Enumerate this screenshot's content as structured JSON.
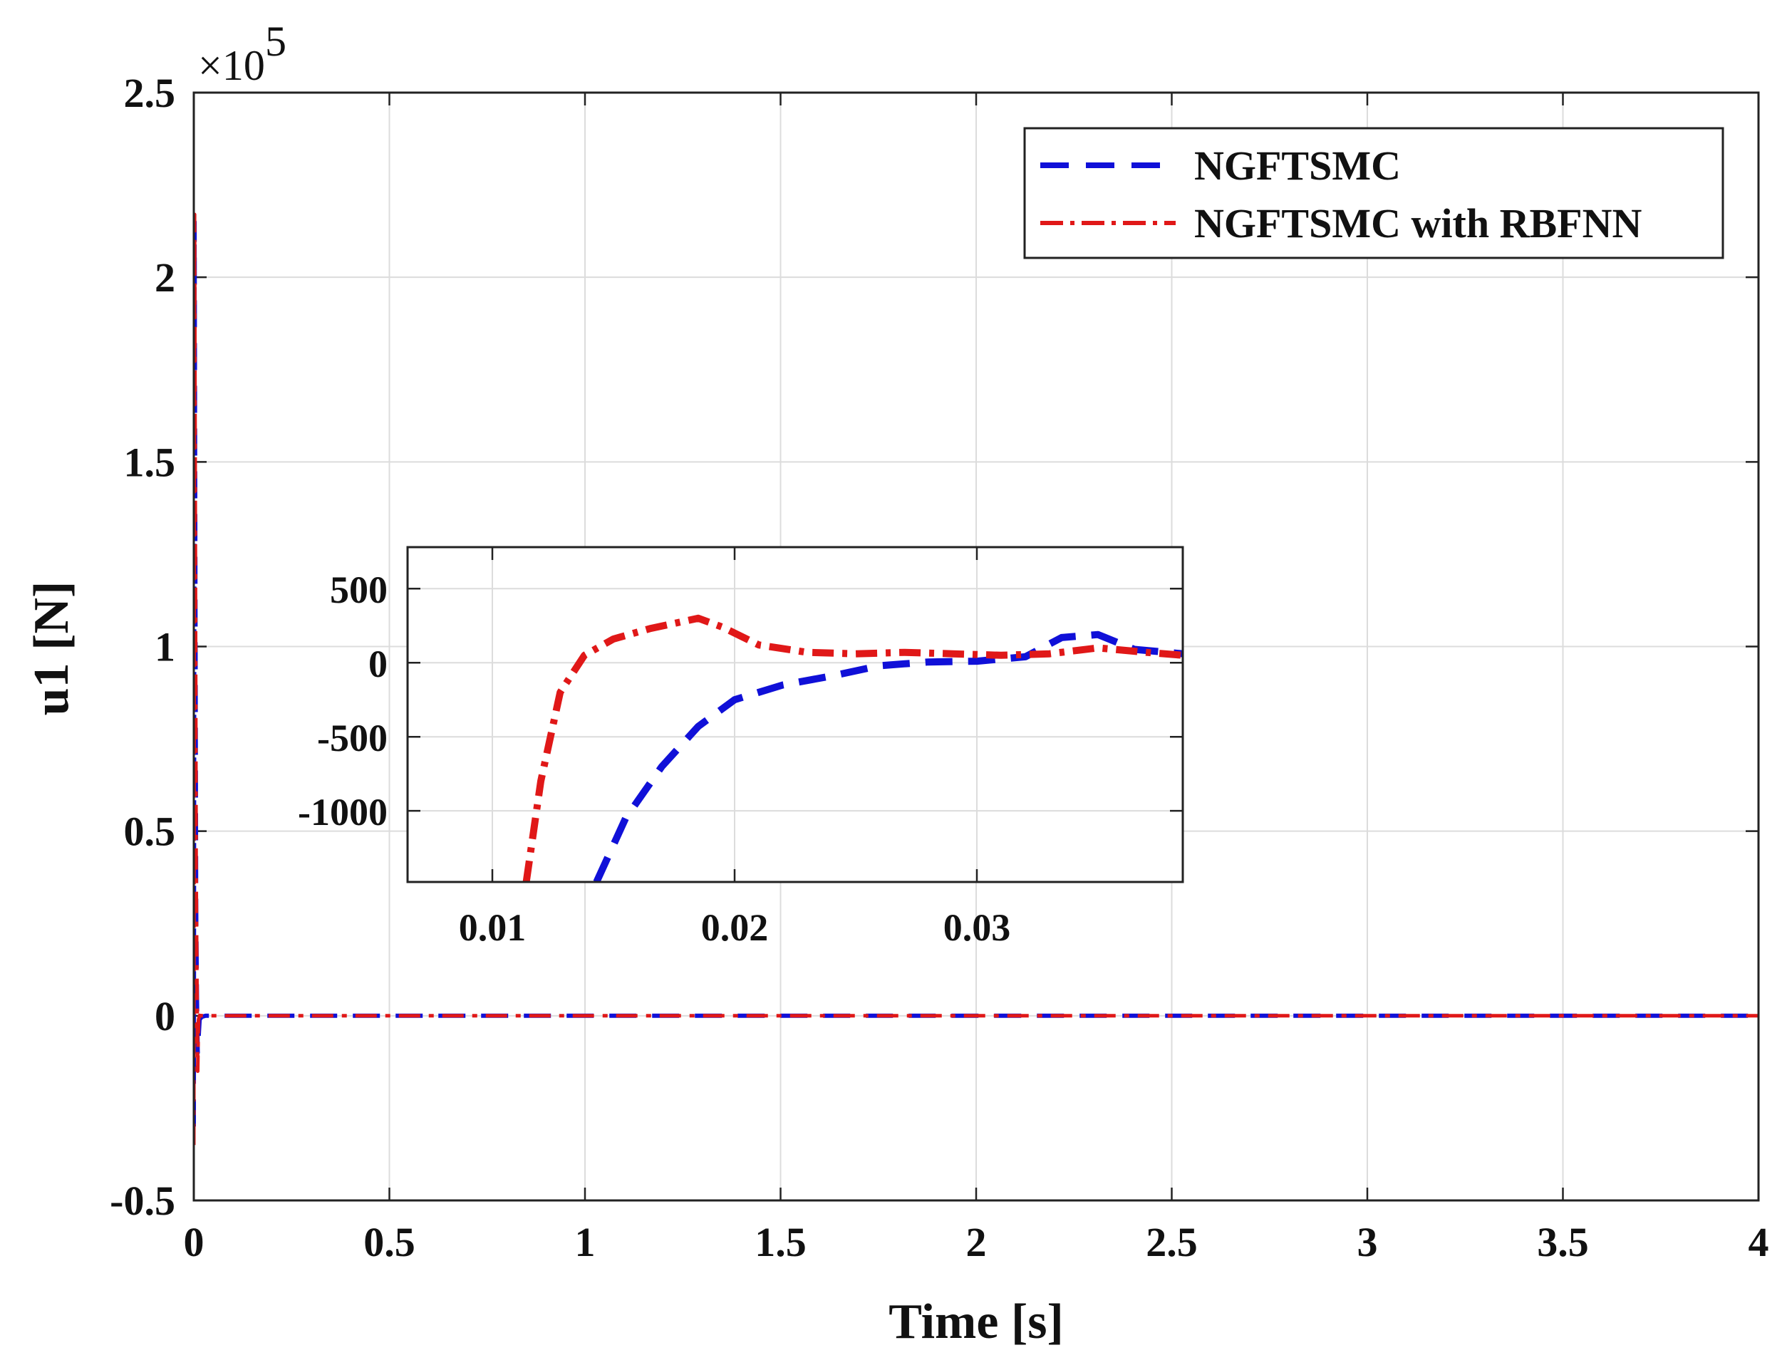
{
  "chart_data": [
    {
      "type": "line",
      "xlabel": "Time [s]",
      "ylabel": "u1 [N]",
      "xlim": [
        0,
        4
      ],
      "ylim": [
        -0.5,
        2.5
      ],
      "xticks": [
        0,
        0.5,
        1,
        1.5,
        2,
        2.5,
        3,
        3.5,
        4
      ],
      "xtick_labels": [
        "0",
        "0.5",
        "1",
        "1.5",
        "2",
        "2.5",
        "3",
        "3.5",
        "4"
      ],
      "yticks": [
        -0.5,
        0,
        0.5,
        1,
        1.5,
        2,
        2.5
      ],
      "ytick_labels": [
        "-0.5",
        "0",
        "0.5",
        "1",
        "1.5",
        "2",
        "2.5"
      ],
      "y_exponent_base": "×10",
      "y_exponent_power": "5",
      "grid": true,
      "legend_position": "top-right",
      "series": [
        {
          "name": "NGFTSMC",
          "color": "#1010d8",
          "style": "dashed",
          "x": [
            0,
            0.002,
            0.004,
            0.006,
            0.008,
            0.01,
            0.015,
            0.02,
            0.03,
            0.1,
            4
          ],
          "y": [
            -0.3,
            2.15,
            1.2,
            0.3,
            0.05,
            -0.1,
            -0.01,
            -0.003,
            0,
            0,
            0
          ]
        },
        {
          "name": "NGFTSMC with RBFNN",
          "color": "#e01818",
          "style": "dashdot",
          "x": [
            0,
            0.002,
            0.004,
            0.006,
            0.008,
            0.01,
            0.012,
            0.015,
            0.02,
            0.03,
            0.1,
            4
          ],
          "y": [
            -0.35,
            2.17,
            1.3,
            0.4,
            0.1,
            -0.15,
            -0.01,
            0.001,
            0.0005,
            0,
            0,
            0
          ]
        }
      ]
    },
    {
      "type": "line",
      "role": "inset-zoom",
      "xlim": [
        0.0065,
        0.0385
      ],
      "ylim": [
        -1480,
        780
      ],
      "xticks": [
        0.01,
        0.02,
        0.03
      ],
      "xtick_labels": [
        "0.01",
        "0.02",
        "0.03"
      ],
      "yticks": [
        -1000,
        -500,
        0,
        500
      ],
      "ytick_labels": [
        "-1000",
        "-500",
        "0",
        "500"
      ],
      "grid": true,
      "series": [
        {
          "name": "NGFTSMC",
          "color": "#1010d8",
          "style": "dashed",
          "x": [
            0.0143,
            0.0155,
            0.017,
            0.0185,
            0.02,
            0.022,
            0.024,
            0.026,
            0.028,
            0.03,
            0.032,
            0.0335,
            0.035,
            0.0365,
            0.0385
          ],
          "y": [
            -1480,
            -1050,
            -700,
            -430,
            -250,
            -150,
            -90,
            -20,
            5,
            10,
            40,
            170,
            190,
            90,
            60
          ]
        },
        {
          "name": "NGFTSMC with RBFNN",
          "color": "#e01818",
          "style": "dashdot",
          "x": [
            0.0114,
            0.012,
            0.0128,
            0.0138,
            0.015,
            0.0165,
            0.0185,
            0.0195,
            0.021,
            0.023,
            0.025,
            0.027,
            0.029,
            0.031,
            0.033,
            0.035,
            0.037,
            0.0385
          ],
          "y": [
            -1480,
            -800,
            -200,
            50,
            160,
            230,
            300,
            240,
            120,
            70,
            60,
            70,
            60,
            50,
            60,
            100,
            70,
            50
          ]
        }
      ]
    }
  ]
}
